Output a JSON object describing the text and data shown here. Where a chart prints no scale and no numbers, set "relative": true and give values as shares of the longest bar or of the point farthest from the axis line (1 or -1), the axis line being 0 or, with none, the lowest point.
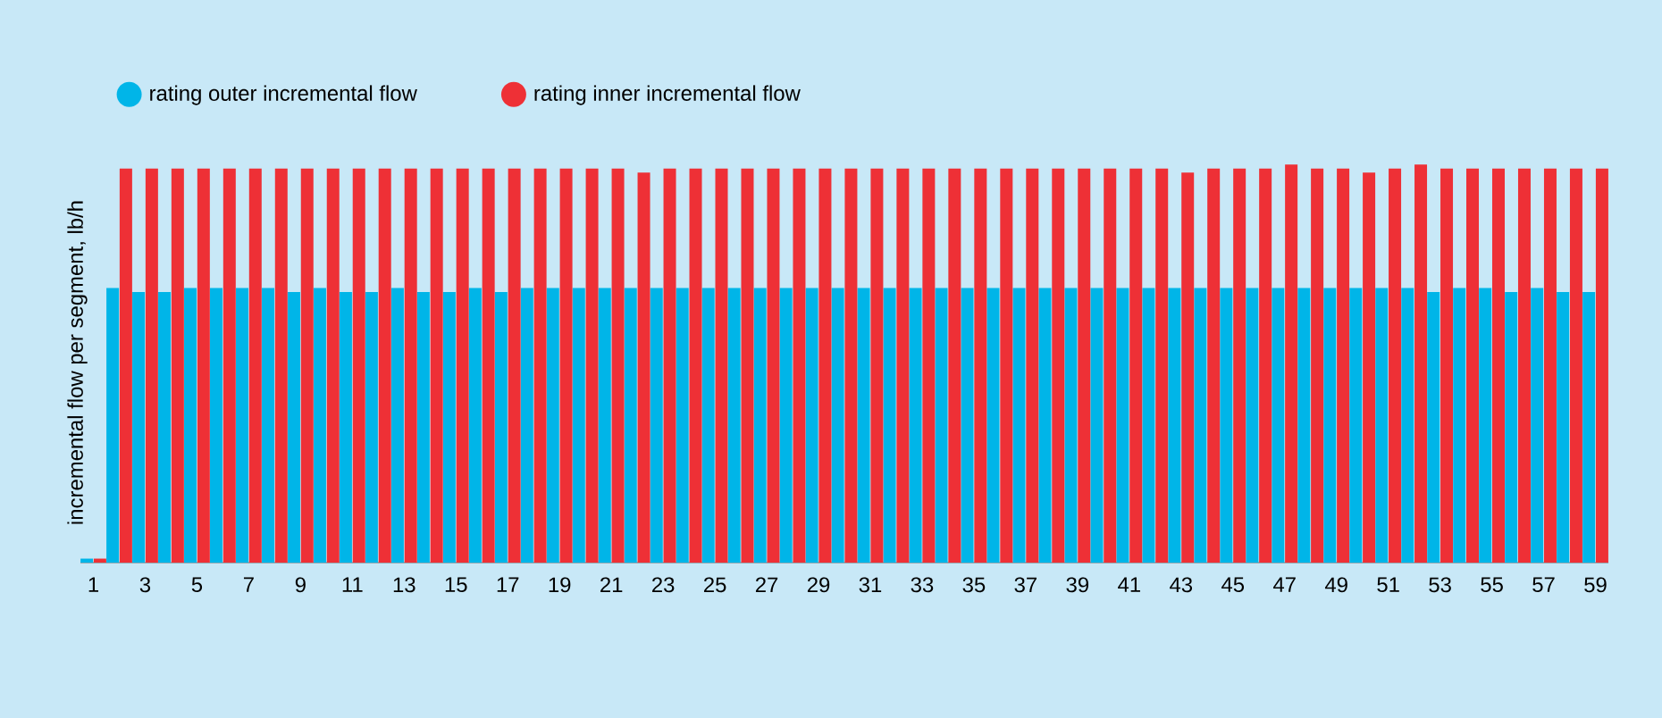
{
  "chart_data": {
    "type": "bar",
    "relative": true,
    "ylabel": "incremental flow per segment, lb/h",
    "legend": "top left",
    "categories": [
      "1",
      null,
      "3",
      null,
      "5",
      null,
      "7",
      null,
      "9",
      null,
      "11",
      null,
      "13",
      null,
      "15",
      null,
      "17",
      null,
      "19",
      null,
      "21",
      null,
      "23",
      null,
      "25",
      null,
      "27",
      null,
      "29",
      null,
      "31",
      null,
      "33",
      null,
      "35",
      null,
      "37",
      null,
      "39",
      null,
      "41",
      null,
      "43",
      null,
      "45",
      null,
      "47",
      null,
      "49",
      null,
      "51",
      null,
      "53",
      null,
      "55",
      null,
      "57",
      null,
      "59"
    ],
    "series": [
      {
        "name": "rating outer incremental flow",
        "color": "#00b5e8",
        "values": [
          0.01,
          0.69,
          0.68,
          0.68,
          0.69,
          0.69,
          0.69,
          0.69,
          0.68,
          0.69,
          0.68,
          0.68,
          0.69,
          0.68,
          0.68,
          0.69,
          0.68,
          0.69,
          0.69,
          0.69,
          0.69,
          0.69,
          0.69,
          0.69,
          0.69,
          0.69,
          0.69,
          0.69,
          0.69,
          0.69,
          0.69,
          0.69,
          0.69,
          0.69,
          0.69,
          0.69,
          0.69,
          0.69,
          0.69,
          0.69,
          0.69,
          0.69,
          0.69,
          0.69,
          0.69,
          0.69,
          0.69,
          0.69,
          0.69,
          0.69,
          0.69,
          0.69,
          0.68,
          0.69,
          0.69,
          0.68,
          0.69,
          0.68,
          0.68
        ]
      },
      {
        "name": "rating inner incremental flow",
        "color": "#ee3036",
        "values": [
          0.01,
          0.99,
          0.99,
          0.99,
          0.99,
          0.99,
          0.99,
          0.99,
          0.99,
          0.99,
          0.99,
          0.99,
          0.99,
          0.99,
          0.99,
          0.99,
          0.99,
          0.99,
          0.99,
          0.99,
          0.99,
          0.98,
          0.99,
          0.99,
          0.99,
          0.99,
          0.99,
          0.99,
          0.99,
          0.99,
          0.99,
          0.99,
          0.99,
          0.99,
          0.99,
          0.99,
          0.99,
          0.99,
          0.99,
          0.99,
          0.99,
          0.99,
          0.98,
          0.99,
          0.99,
          0.99,
          1.0,
          0.99,
          0.99,
          0.98,
          0.99,
          1.0,
          0.99,
          0.99,
          0.99,
          0.99,
          0.99,
          0.99,
          0.99
        ]
      }
    ]
  }
}
